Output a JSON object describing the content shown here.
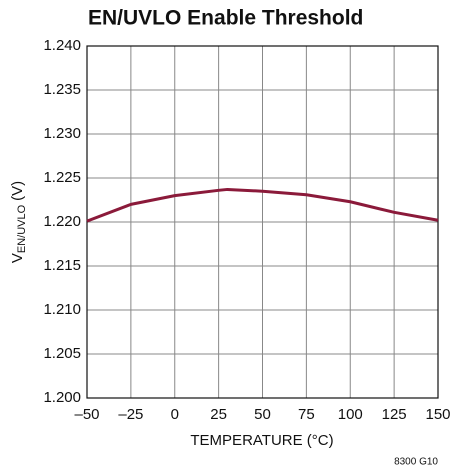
{
  "chart_data": {
    "type": "line",
    "title": "EN/UVLO Enable Threshold",
    "x_label": "TEMPERATURE (°C)",
    "y_label": {
      "main": "V",
      "sub": "EN/UVLO",
      "unit": "(V)"
    },
    "note": "8300 G10",
    "x": [
      -50,
      -25,
      0,
      25,
      30,
      50,
      75,
      100,
      125,
      150
    ],
    "series": [
      {
        "name": "VEN/UVLO",
        "color": "#8b1a3a",
        "values": [
          1.2201,
          1.222,
          1.223,
          1.2236,
          1.2237,
          1.2235,
          1.2231,
          1.2223,
          1.2211,
          1.2202
        ]
      }
    ],
    "xlim": [
      -50,
      150
    ],
    "xticks": [
      {
        "value": -50,
        "label": "–50"
      },
      {
        "value": -25,
        "label": "–25"
      },
      0,
      25,
      50,
      75,
      100,
      125,
      150
    ],
    "ylim": [
      1.2,
      1.24
    ],
    "yticks": [
      {
        "value": 1.2,
        "label": "1.200"
      },
      1.205,
      {
        "value": 1.21,
        "label": "1.210"
      },
      1.215,
      {
        "value": 1.22,
        "label": "1.220"
      },
      1.225,
      {
        "value": 1.23,
        "label": "1.230"
      },
      1.235,
      {
        "value": 1.24,
        "label": "1.240"
      }
    ],
    "grid": true
  }
}
